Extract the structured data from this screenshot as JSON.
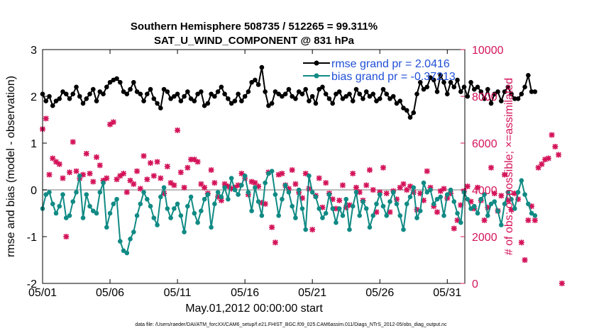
{
  "chart_data": {
    "type": "line",
    "title": "Southern Hemisphere 508735 / 512265 = 99.311%",
    "subtitle": "SAT_U_WIND_COMPONENT @ 831 hPa",
    "xlabel": "May.01,2012 00:00:00 start",
    "ylabel": "rmse and bias (model - observation)",
    "y2label": "# of obs: o=possible; ×=assimilated",
    "xlim": [
      0,
      31.3
    ],
    "ylim": [
      -2,
      3
    ],
    "y2lim": [
      0,
      10000
    ],
    "xtick_values": [
      0,
      5,
      10,
      15,
      20,
      25,
      30
    ],
    "xtick_labels": [
      "05/01",
      "05/06",
      "05/11",
      "05/16",
      "05/21",
      "05/26",
      "05/31"
    ],
    "ytick_values": [
      -2,
      -1,
      0,
      1,
      2,
      3
    ],
    "ytick_labels": [
      "-2",
      "-1",
      "0",
      "1",
      "2",
      "3"
    ],
    "y2tick_values": [
      0,
      2000,
      4000,
      6000,
      8000,
      10000
    ],
    "y2tick_labels": [
      "0",
      "2000",
      "4000",
      "6000",
      "8000",
      "10000"
    ],
    "zero_line": 0,
    "legend_position": "top-right",
    "colors": {
      "rmse": "#000000",
      "bias": "#108a84",
      "obs": "#d4145a",
      "y2axis": "#d4145a",
      "legend_text": "#1f4fd6",
      "zero": "#bbbbbb"
    },
    "legend": [
      "rmse grand pr = 2.0416",
      "bias grand pr = -0.37213"
    ],
    "x_start": 0,
    "x_step": 0.25,
    "series": [
      {
        "name": "rmse",
        "axis": "left",
        "values": [
          2.05,
          1.9,
          2.0,
          1.8,
          1.9,
          1.95,
          2.1,
          2.05,
          1.95,
          2.05,
          2.2,
          2.0,
          1.85,
          1.95,
          2.05,
          2.15,
          1.9,
          2.1,
          2.05,
          2.2,
          2.3,
          2.35,
          2.38,
          2.3,
          2.1,
          2.05,
          2.15,
          2.3,
          2.1,
          2.05,
          1.9,
          2.05,
          2.15,
          1.95,
          1.85,
          1.75,
          2.15,
          2.1,
          1.95,
          2.0,
          2.05,
          1.9,
          2.0,
          2.1,
          1.95,
          1.9,
          2.05,
          2.1,
          1.8,
          1.85,
          2.05,
          2.0,
          2.1,
          2.2,
          2.05,
          1.95,
          1.85,
          1.9,
          2.05,
          1.9,
          2.0,
          2.1,
          2.3,
          2.35,
          2.25,
          2.62,
          2.1,
          1.8,
          1.85,
          2.1,
          2.05,
          2.0,
          2.05,
          2.15,
          2.0,
          1.95,
          2.1,
          2.05,
          2.15,
          1.9,
          2.0,
          1.85,
          2.15,
          2.2,
          2.05,
          1.95,
          1.85,
          2.05,
          2.1,
          1.95,
          2.0,
          2.05,
          1.9,
          2.15,
          2.05,
          1.95,
          2.1,
          2.0,
          2.05,
          1.9,
          1.95,
          2.15,
          2.05,
          1.95,
          2.0,
          1.85,
          1.9,
          1.75,
          1.7,
          1.55,
          1.65,
          2.05,
          2.3,
          2.15,
          2.2,
          2.4,
          2.35,
          2.1,
          2.45,
          2.3,
          2.05,
          2.3,
          2.2,
          2.35,
          2.1,
          2.2,
          2.0,
          2.3,
          2.15,
          2.2,
          2.1,
          1.95,
          2.15,
          1.85,
          2.05,
          2.1,
          1.9,
          2.1,
          2.2,
          2.05,
          1.95,
          1.95,
          2.05,
          2.2,
          2.45,
          2.1,
          2.1
        ]
      },
      {
        "name": "bias",
        "axis": "left",
        "values": [
          -0.4,
          -0.1,
          -0.05,
          -0.3,
          -0.5,
          -0.35,
          -0.1,
          -0.6,
          -0.55,
          -0.25,
          -0.05,
          0.3,
          -0.6,
          -0.1,
          -0.35,
          -0.45,
          -0.5,
          -0.05,
          0.15,
          -0.8,
          -0.5,
          -0.3,
          -0.2,
          -1.1,
          -1.3,
          -1.35,
          -1.05,
          -0.9,
          -0.55,
          -0.3,
          -0.05,
          -0.2,
          -0.35,
          -0.6,
          -0.75,
          -0.15,
          0.05,
          -0.4,
          -0.6,
          -0.4,
          -0.3,
          -0.55,
          -0.9,
          -0.35,
          -0.15,
          -0.5,
          -0.7,
          -0.45,
          -0.2,
          -0.1,
          -0.8,
          -0.3,
          -0.05,
          -0.15,
          0.05,
          -0.2,
          0.25,
          0.0,
          -0.1,
          0.1,
          0.3,
          -0.05,
          -0.45,
          0.05,
          -0.25,
          -0.55,
          0.15,
          0.35,
          0.4,
          -0.1,
          -0.55,
          -0.2,
          0.1,
          -0.05,
          -0.35,
          -0.6,
          0.0,
          -0.4,
          -0.85,
          0.3,
          -0.05,
          -0.15,
          -0.4,
          -0.6,
          -0.5,
          -0.1,
          -0.4,
          -0.7,
          -0.4,
          -0.55,
          -0.2,
          -0.85,
          -0.35,
          -0.05,
          -0.55,
          -0.25,
          -0.4,
          -0.8,
          -0.55,
          -0.3,
          -0.1,
          -0.35,
          -0.55,
          -0.25,
          -0.05,
          -0.3,
          -0.55,
          -0.85,
          -0.3,
          -0.15,
          0.05,
          -0.6,
          -0.45,
          0.15,
          -0.05,
          0.0,
          -0.3,
          -0.2,
          -0.15,
          -0.55,
          -0.1,
          0.0,
          -0.25,
          -0.5,
          -0.7,
          -0.05,
          -0.2,
          -0.4,
          -0.35,
          -0.5,
          -0.2,
          -0.1,
          -0.55,
          -0.3,
          -0.25,
          -0.45,
          -0.75,
          -0.3,
          -0.05,
          -0.2,
          -0.4,
          -0.05,
          0.2,
          -0.1,
          -0.3,
          -0.5,
          -0.55
        ]
      },
      {
        "name": "obs_assimilated",
        "axis": "right",
        "marker": "x",
        "values": [
          6600,
          7050,
          4650,
          5350,
          5200,
          5100,
          4500,
          2000,
          4750,
          6050,
          4800,
          4500,
          4650,
          5550,
          4700,
          4350,
          5400,
          5050,
          4400,
          4500,
          6800,
          6900,
          4450,
          4600,
          4700,
          3900,
          4400,
          4250,
          4800,
          4050,
          5450,
          4450,
          5150,
          4600,
          5200,
          4500,
          3850,
          5000,
          4300,
          4200,
          6550,
          4750,
          4100,
          4950,
          5300,
          5300,
          5200,
          4250,
          4100,
          3850,
          4850,
          4300,
          3700,
          3550,
          4250,
          4150,
          4050,
          4100,
          4200,
          4700,
          4500,
          3800,
          4350,
          4300,
          4150,
          3450,
          3400,
          4750,
          2400,
          1750,
          4650,
          4700,
          4200,
          4050,
          4850,
          4250,
          3900,
          3650,
          4700,
          4050,
          2300,
          3750,
          4500,
          3250,
          4300,
          3850,
          3600,
          3200,
          3550,
          4200,
          3250,
          3350,
          4700,
          4100,
          3900,
          3550,
          4200,
          4850,
          4000,
          3050,
          3900,
          4950,
          3850,
          3050,
          3950,
          3600,
          4100,
          4250,
          4000,
          4150,
          3900,
          3150,
          3850,
          3550,
          4800,
          4100,
          3300,
          3050,
          3950,
          4050,
          3650,
          3850,
          2350,
          2700,
          3350,
          3950,
          4150,
          3500,
          3200,
          4100,
          3550,
          2700,
          3250,
          4950,
          3850,
          3100,
          3750,
          4650,
          3550,
          3150,
          3850,
          3600,
          1750,
          1000,
          2700,
          3300,
          2700,
          4950,
          5100,
          5300,
          5350,
          6350,
          5850,
          5500,
          0
        ]
      }
    ]
  }
}
